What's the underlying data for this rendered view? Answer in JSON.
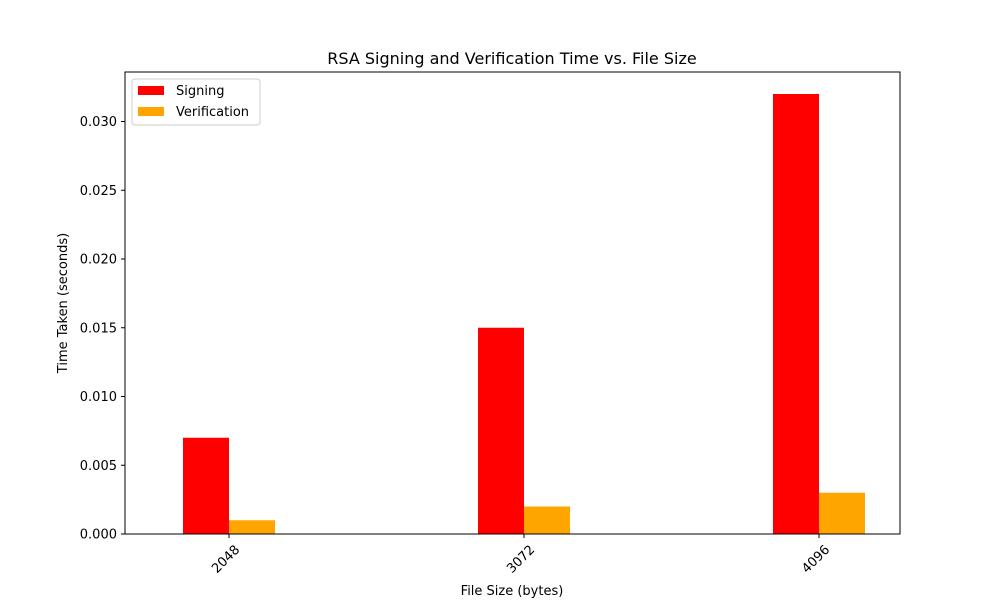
{
  "chart_data": {
    "type": "bar",
    "title": "RSA Signing and Verification Time vs. File Size",
    "xlabel": "File Size (bytes)",
    "ylabel": "Time Taken (seconds)",
    "categories": [
      "2048",
      "3072",
      "4096"
    ],
    "series": [
      {
        "name": "Signing",
        "color": "#ff0000",
        "values": [
          0.007,
          0.015,
          0.032
        ]
      },
      {
        "name": "Verification",
        "color": "#ffa500",
        "values": [
          0.001,
          0.002,
          0.003
        ]
      }
    ],
    "ylim": [
      0,
      0.0336
    ],
    "yticks": [
      "0.000",
      "0.005",
      "0.010",
      "0.015",
      "0.020",
      "0.025",
      "0.030"
    ],
    "x_tick_rotation": 45,
    "legend_position": "top-left",
    "grid": false
  }
}
